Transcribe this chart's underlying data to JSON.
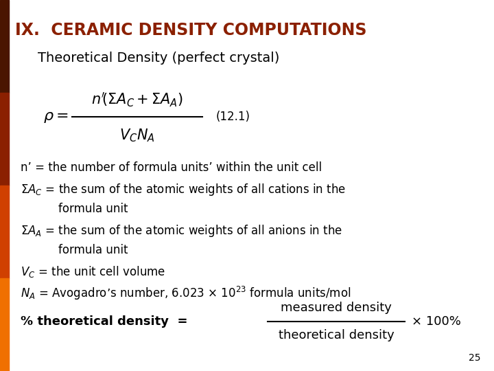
{
  "title": "IX.  CERAMIC DENSITY COMPUTATIONS",
  "title_color": "#8B2000",
  "subtitle": "Theoretical Density (perfect crystal)",
  "background_color": "#FFFFFF",
  "left_bar_color_top": "#4A1500",
  "left_bar_color_mid": "#8B2000",
  "left_bar_color_bot": "#D04000",
  "left_bar_color_btm": "#F07000",
  "equation_label": "(12.1)",
  "percent_frac_num": "measured density",
  "percent_frac_den": "theoretical density",
  "percent_end": "× 100%",
  "page_number": "25",
  "font_size_title": 17,
  "font_size_subtitle": 14,
  "font_size_body": 12,
  "font_size_eq": 11,
  "font_size_math": 13
}
